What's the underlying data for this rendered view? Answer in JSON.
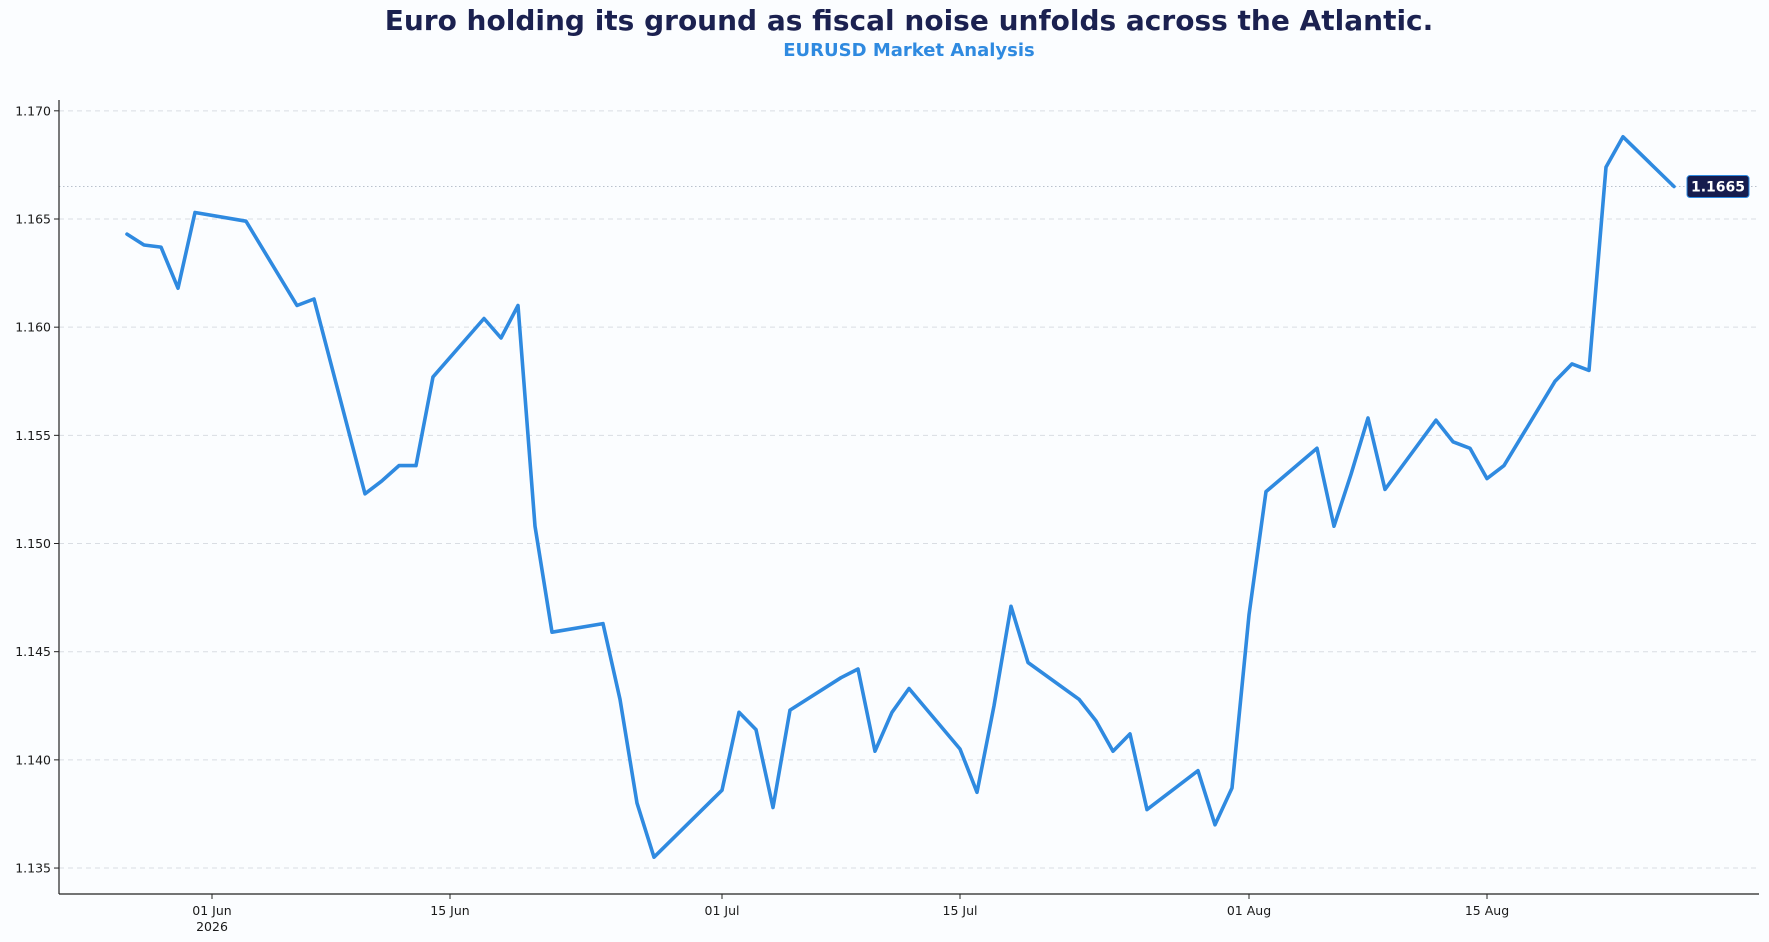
{
  "chart_data": {
    "type": "line",
    "title": "Euro holding its ground as fiscal noise unfolds across the Atlantic.",
    "subtitle": "EURUSD Market Analysis",
    "xlabel": "",
    "ylabel": "",
    "ylim": [
      1.1338,
      1.1705
    ],
    "xlim": [
      "2026-05-23",
      "2026-08-31"
    ],
    "grid": {
      "y": true,
      "x": false,
      "style": "dashed"
    },
    "colors": {
      "line": "#2f8ae0",
      "label_bg": "#161c4e",
      "title": "#1b2150",
      "subtitle": "#2f8ae0",
      "grid": "#d9dde3"
    },
    "y_ticks": [
      "1.135",
      "1.140",
      "1.145",
      "1.150",
      "1.155",
      "1.160",
      "1.165",
      "1.170"
    ],
    "x_ticks": [
      {
        "date": "2026-06-01",
        "label": "01 Jun",
        "sublabel": "2026"
      },
      {
        "date": "2026-06-15",
        "label": "15 Jun",
        "sublabel": ""
      },
      {
        "date": "2026-07-01",
        "label": "01 Jul",
        "sublabel": ""
      },
      {
        "date": "2026-07-15",
        "label": "15 Jul",
        "sublabel": ""
      },
      {
        "date": "2026-08-01",
        "label": "01 Aug",
        "sublabel": ""
      },
      {
        "date": "2026-08-15",
        "label": "15 Aug",
        "sublabel": ""
      }
    ],
    "last_value_label": "1.1665",
    "reference_line": 1.1665,
    "series": [
      {
        "values": [
          [
            "2026-05-27",
            1.1643
          ],
          [
            "2026-05-28",
            1.1638
          ],
          [
            "2026-05-29",
            1.1637
          ],
          [
            "2026-05-30",
            1.1618
          ],
          [
            "2026-05-31",
            1.1653
          ],
          [
            "2026-06-03",
            1.1649
          ],
          [
            "2026-06-06",
            1.161
          ],
          [
            "2026-06-07",
            1.1613
          ],
          [
            "2026-06-10",
            1.1523
          ],
          [
            "2026-06-11",
            1.1529
          ],
          [
            "2026-06-12",
            1.1536
          ],
          [
            "2026-06-13",
            1.1536
          ],
          [
            "2026-06-14",
            1.1577
          ],
          [
            "2026-06-17",
            1.1604
          ],
          [
            "2026-06-18",
            1.1595
          ],
          [
            "2026-06-19",
            1.161
          ],
          [
            "2026-06-20",
            1.1508
          ],
          [
            "2026-06-21",
            1.1459
          ],
          [
            "2026-06-24",
            1.1463
          ],
          [
            "2026-06-25",
            1.1428
          ],
          [
            "2026-06-26",
            1.138
          ],
          [
            "2026-06-27",
            1.1355
          ],
          [
            "2026-07-01",
            1.1386
          ],
          [
            "2026-07-02",
            1.1422
          ],
          [
            "2026-07-03",
            1.1414
          ],
          [
            "2026-07-04",
            1.1378
          ],
          [
            "2026-07-05",
            1.1423
          ],
          [
            "2026-07-08",
            1.1438
          ],
          [
            "2026-07-09",
            1.1442
          ],
          [
            "2026-07-10",
            1.1404
          ],
          [
            "2026-07-11",
            1.1422
          ],
          [
            "2026-07-12",
            1.1433
          ],
          [
            "2026-07-15",
            1.1405
          ],
          [
            "2026-07-16",
            1.1385
          ],
          [
            "2026-07-17",
            1.1425
          ],
          [
            "2026-07-18",
            1.1471
          ],
          [
            "2026-07-19",
            1.1445
          ],
          [
            "2026-07-22",
            1.1428
          ],
          [
            "2026-07-23",
            1.1418
          ],
          [
            "2026-07-24",
            1.1404
          ],
          [
            "2026-07-25",
            1.1412
          ],
          [
            "2026-07-26",
            1.1377
          ],
          [
            "2026-07-29",
            1.1395
          ],
          [
            "2026-07-30",
            1.137
          ],
          [
            "2026-07-31",
            1.1387
          ],
          [
            "2026-08-01",
            1.1467
          ],
          [
            "2026-08-02",
            1.1524
          ],
          [
            "2026-08-05",
            1.1544
          ],
          [
            "2026-08-06",
            1.1508
          ],
          [
            "2026-08-07",
            1.1532
          ],
          [
            "2026-08-08",
            1.1558
          ],
          [
            "2026-08-09",
            1.1525
          ],
          [
            "2026-08-12",
            1.1557
          ],
          [
            "2026-08-13",
            1.1547
          ],
          [
            "2026-08-14",
            1.1544
          ],
          [
            "2026-08-15",
            1.153
          ],
          [
            "2026-08-16",
            1.1536
          ],
          [
            "2026-08-19",
            1.1575
          ],
          [
            "2026-08-20",
            1.1583
          ],
          [
            "2026-08-21",
            1.158
          ],
          [
            "2026-08-22",
            1.1674
          ],
          [
            "2026-08-23",
            1.1688
          ],
          [
            "2026-08-26",
            1.1665
          ]
        ]
      }
    ]
  }
}
